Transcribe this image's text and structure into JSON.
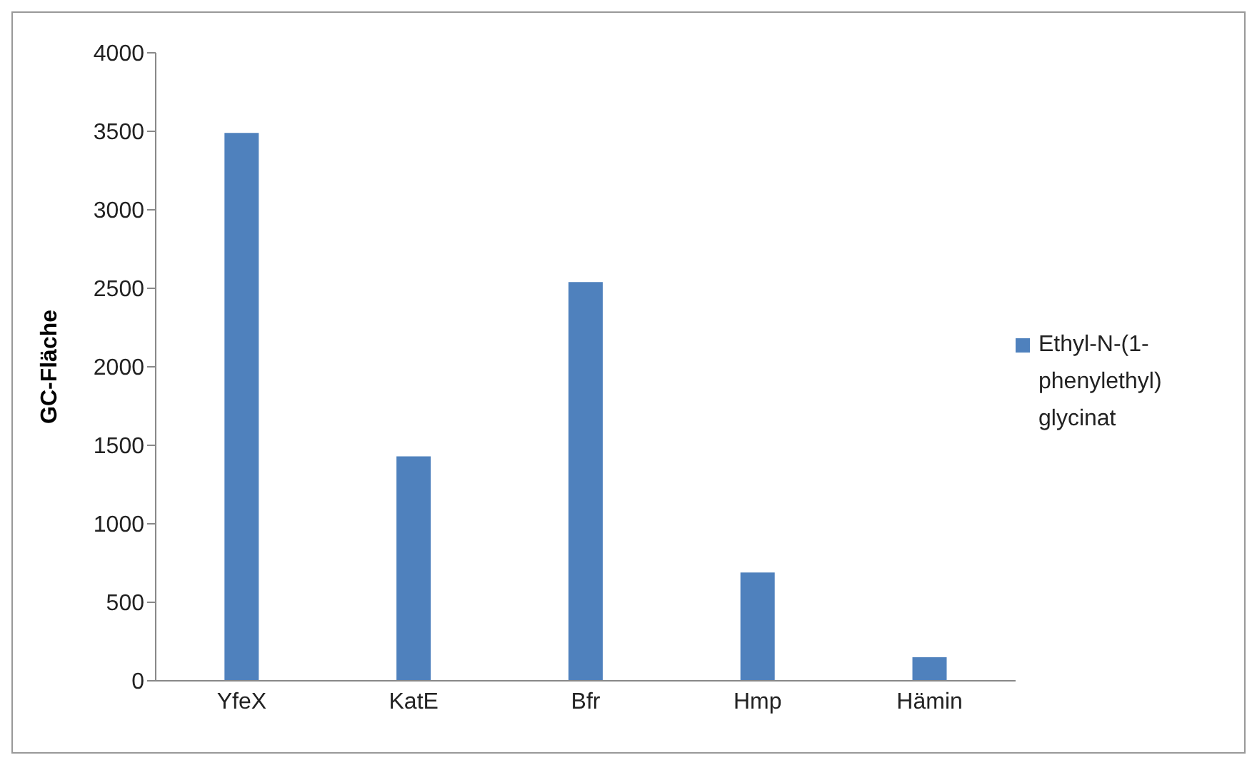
{
  "chart_data": {
    "type": "bar",
    "ylabel": "GC-Fläche",
    "categories": [
      "YfeX",
      "KatE",
      "Bfr",
      "Hmp",
      "Hämin"
    ],
    "series": [
      {
        "name": "Ethyl-N-(1-phenylethyl) glycinat",
        "color": "#4f81bd",
        "values": [
          3490,
          1430,
          2540,
          690,
          150
        ]
      }
    ],
    "ylim": [
      0,
      4000
    ],
    "yticks": [
      0,
      500,
      1000,
      1500,
      2000,
      2500,
      3000,
      3500,
      4000
    ],
    "grid": false,
    "legend": "right"
  }
}
